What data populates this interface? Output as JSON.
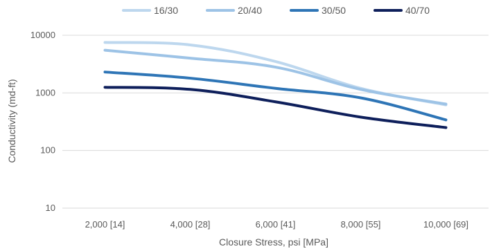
{
  "chart_data": {
    "type": "line",
    "title": "",
    "xlabel": "Closure Stress, psi [MPa]",
    "ylabel": "Conductivity (md-ft)",
    "yscale": "log",
    "ylim": [
      10,
      10000
    ],
    "yticks": [
      "10",
      "100",
      "1000",
      "10000"
    ],
    "categories": [
      "2,000 [14]",
      "4,000 [28]",
      "6,000 [41]",
      "8,000 [55]",
      "10,000 [69]"
    ],
    "grid": true,
    "legend_position": "top",
    "series": [
      {
        "name": "16/30",
        "color": "#bdd7ee",
        "values": [
          7500,
          6800,
          3500,
          1200,
          620
        ]
      },
      {
        "name": "20/40",
        "color": "#9dc3e6",
        "values": [
          5500,
          4000,
          2800,
          1150,
          640
        ]
      },
      {
        "name": "30/50",
        "color": "#2e75b6",
        "values": [
          2300,
          1800,
          1200,
          820,
          340
        ]
      },
      {
        "name": "40/70",
        "color": "#0e1f5b",
        "values": [
          1250,
          1150,
          700,
          380,
          250
        ]
      }
    ]
  }
}
